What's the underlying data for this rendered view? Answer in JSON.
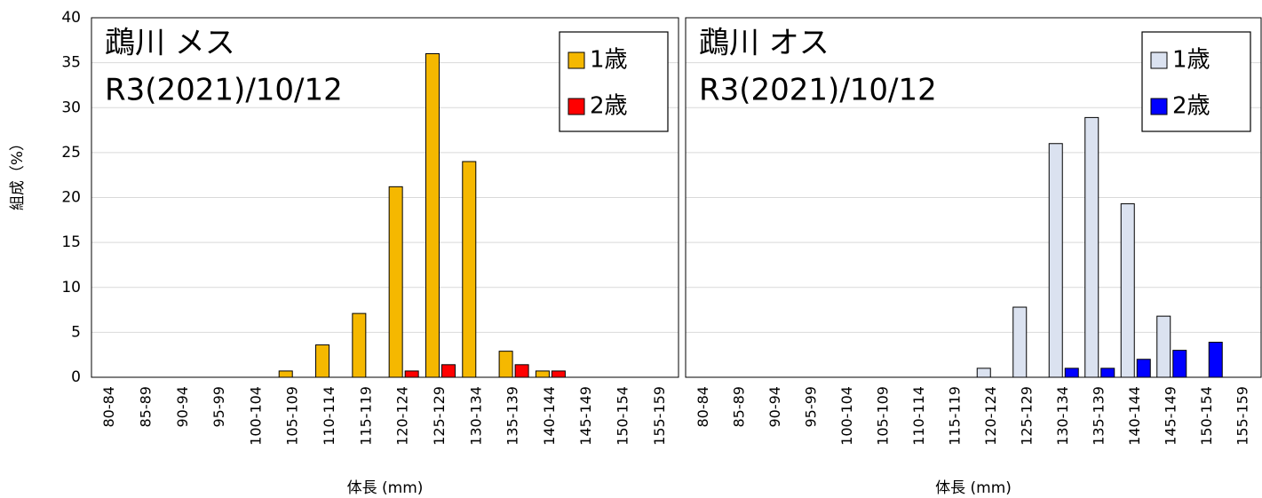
{
  "chart_data": [
    {
      "type": "bar",
      "title": "鵡川 メス",
      "subtitle": "R3(2021)/10/12",
      "x_label": "体長 (mm)",
      "y_label": "組成（%）",
      "categories": [
        "80-84",
        "85-89",
        "90-94",
        "95-99",
        "100-104",
        "105-109",
        "110-114",
        "115-119",
        "120-124",
        "125-129",
        "130-134",
        "135-139",
        "140-144",
        "145-149",
        "150-154",
        "155-159"
      ],
      "series": [
        {
          "name": "1歳",
          "color": "#f5b800",
          "values": [
            0,
            0,
            0,
            0,
            0,
            0.7,
            3.6,
            7.1,
            21.2,
            36,
            24,
            2.9,
            0.7,
            0,
            0,
            0
          ]
        },
        {
          "name": "2歳",
          "color": "#ff0000",
          "values": [
            0,
            0,
            0,
            0,
            0,
            0,
            0,
            0,
            0.7,
            1.4,
            0,
            1.4,
            0.7,
            0,
            0,
            0
          ]
        }
      ],
      "ylim": [
        0,
        40
      ],
      "yticks": [
        0,
        5,
        10,
        15,
        20,
        25,
        30,
        35,
        40
      ],
      "grid": true,
      "legend": "top-right"
    },
    {
      "type": "bar",
      "title": "鵡川 オス",
      "subtitle": "R3(2021)/10/12",
      "x_label": "体長 (mm)",
      "categories": [
        "80-84",
        "85-89",
        "90-94",
        "95-99",
        "100-104",
        "105-109",
        "110-114",
        "115-119",
        "120-124",
        "125-129",
        "130-134",
        "135-139",
        "140-144",
        "145-149",
        "150-154",
        "155-159"
      ],
      "series": [
        {
          "name": "1歳",
          "color": "#dbe2f0",
          "values": [
            0,
            0,
            0,
            0,
            0,
            0,
            0,
            0,
            1.0,
            7.8,
            26,
            28.9,
            19.3,
            6.8,
            0,
            0
          ]
        },
        {
          "name": "2歳",
          "color": "#0000ff",
          "values": [
            0,
            0,
            0,
            0,
            0,
            0,
            0,
            0,
            0,
            0,
            1.0,
            1.0,
            2.0,
            3.0,
            3.9,
            0
          ]
        }
      ],
      "ylim": [
        0,
        40
      ],
      "grid": true,
      "legend": "top-right"
    }
  ]
}
